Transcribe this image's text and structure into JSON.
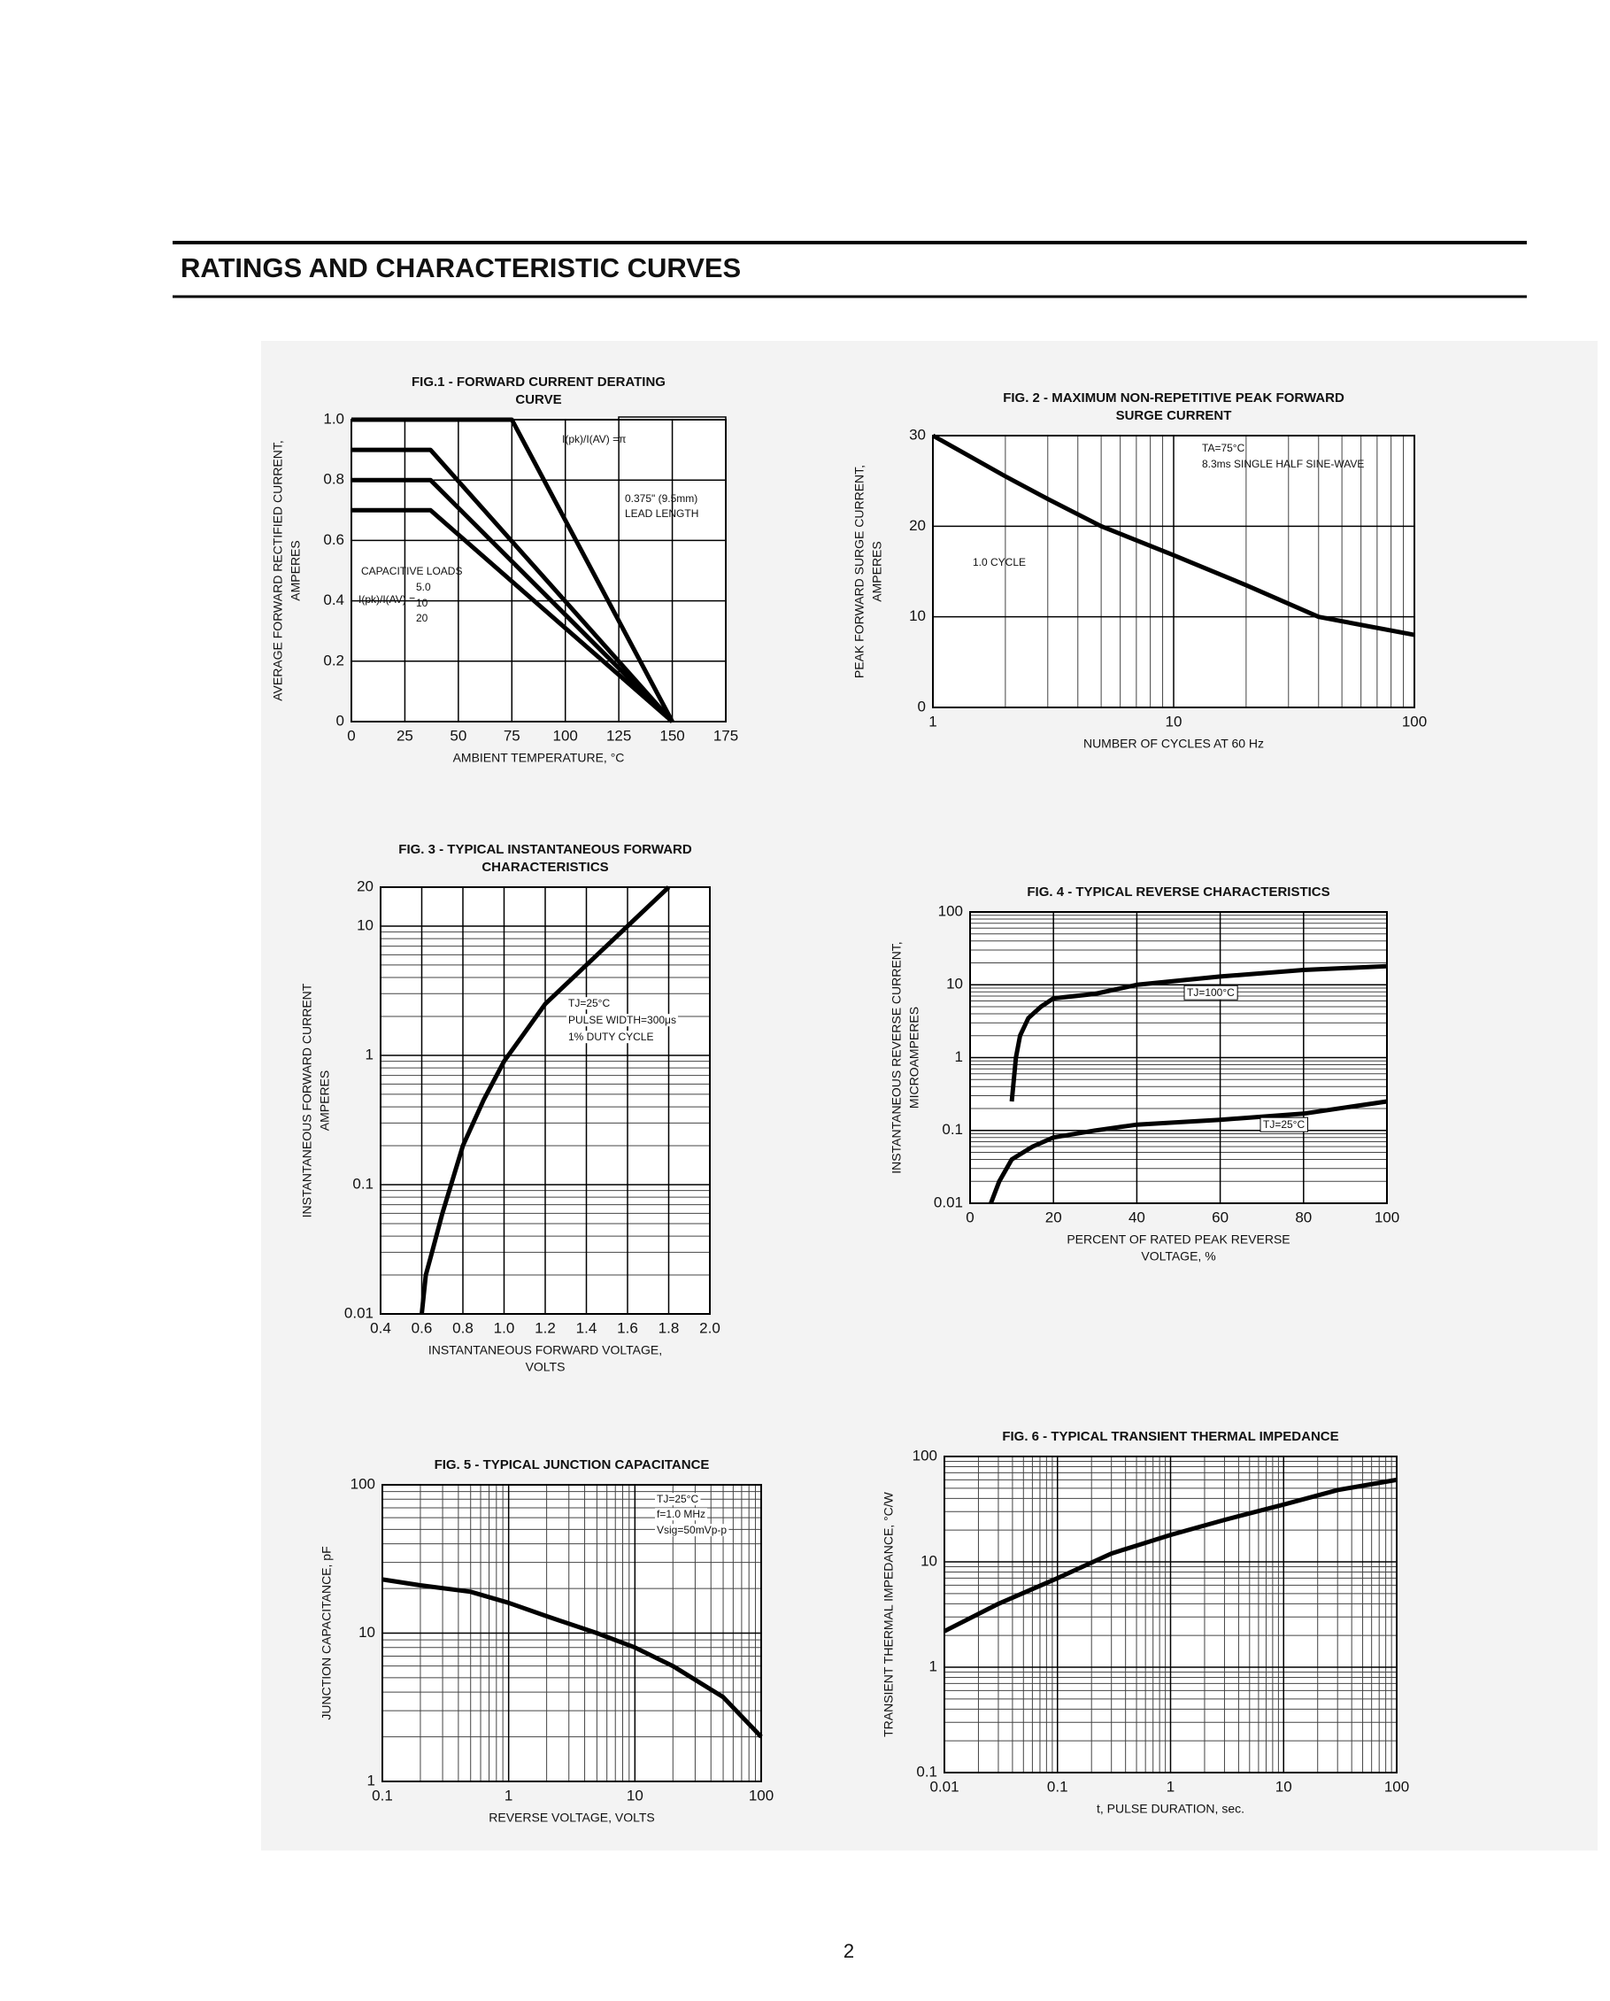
{
  "header": {
    "title": "RATINGS AND CHARACTERISTIC CURVES"
  },
  "footer": {
    "page_number": "2"
  },
  "chart_data": [
    {
      "type": "line",
      "title": [
        "FIG.1 - FORWARD CURRENT DERATING",
        "CURVE"
      ],
      "x_label": [
        "AMBIENT TEMPERATURE, °C"
      ],
      "y_label": [
        "AVERAGE FORWARD RECTIFIED CURRENT,",
        "AMPERES"
      ],
      "xlim": [
        0,
        175
      ],
      "ylim": [
        0,
        1
      ],
      "xticks": [
        0,
        25,
        50,
        75,
        100,
        125,
        150,
        175
      ],
      "yticks": [
        0,
        0.2,
        0.4,
        0.6,
        0.8,
        {
          "value": 1,
          "label": "1.0"
        }
      ],
      "grid": true,
      "annotations": [
        "I(pk)/I(AV) =π",
        "0.375\" (9.5mm)",
        "LEAD LENGTH",
        "CAPACITIVE LOADS",
        "I(pk)/I(AV) ="
      ],
      "series": [
        {
          "color": "#000000",
          "x": [
            0,
            75,
            150
          ],
          "values": [
            1,
            1,
            0
          ]
        },
        {
          "name": "5.0",
          "color": "#000000",
          "x": [
            0,
            37,
            150
          ],
          "values": [
            0.9,
            0.9,
            0
          ]
        },
        {
          "name": "10",
          "color": "#000000",
          "x": [
            0,
            37,
            150
          ],
          "values": [
            0.8,
            0.8,
            0
          ]
        },
        {
          "name": "20",
          "color": "#000000",
          "x": [
            0,
            37,
            150
          ],
          "values": [
            0.7,
            0.7,
            0
          ]
        }
      ]
    },
    {
      "type": "line",
      "title": [
        "FIG. 2 - MAXIMUM NON-REPETITIVE PEAK FORWARD",
        "SURGE CURRENT"
      ],
      "x_label": [
        "NUMBER OF CYCLES AT 60 Hz"
      ],
      "y_label": [
        "PEAK FORWARD SURGE CURRENT,",
        "AMPERES"
      ],
      "xlim": [
        1,
        100
      ],
      "ylim": [
        0,
        30
      ],
      "xticks": [
        1,
        10,
        100
      ],
      "yticks": [
        0,
        10,
        20,
        30
      ],
      "xscale": "log",
      "grid": true,
      "annotations": [
        "TA=75°C",
        "8.3ms SINGLE HALF SINE-WAVE",
        "1.0 CYCLE"
      ],
      "series": [
        {
          "color": "#000000",
          "x": [
            1,
            2,
            3,
            5,
            10,
            20,
            40,
            100
          ],
          "values": [
            30,
            25.5,
            23,
            20,
            16.8,
            13.5,
            10,
            8
          ]
        }
      ]
    },
    {
      "type": "line",
      "title": [
        "FIG. 3 - TYPICAL INSTANTANEOUS FORWARD",
        "CHARACTERISTICS"
      ],
      "x_label": [
        "INSTANTANEOUS FORWARD VOLTAGE,",
        "VOLTS"
      ],
      "y_label": [
        "INSTANTANEOUS FORWARD CURRENT",
        "AMPERES"
      ],
      "xlim": [
        0.4,
        2
      ],
      "ylim": [
        0.01,
        20
      ],
      "xticks": [
        0.4,
        0.6,
        0.8,
        {
          "value": 1,
          "label": "1.0"
        },
        1.2,
        1.4,
        1.6,
        1.8,
        {
          "value": 2,
          "label": "2.0"
        }
      ],
      "yticks": [
        0.01,
        0.1,
        1,
        10,
        20
      ],
      "yscale": "log",
      "grid": true,
      "annotations": [
        "TJ=25°C",
        "PULSE WIDTH=300μs",
        "1% DUTY CYCLE"
      ],
      "series": [
        {
          "color": "#000000",
          "x": [
            0.6,
            0.62,
            0.65,
            0.7,
            0.8,
            0.9,
            1.0,
            1.1,
            1.2,
            1.4,
            1.6,
            1.8
          ],
          "values": [
            0.01,
            0.02,
            0.03,
            0.06,
            0.2,
            0.45,
            0.9,
            1.5,
            2.5,
            5,
            10,
            20
          ]
        }
      ]
    },
    {
      "type": "line",
      "title": [
        "FIG. 4 - TYPICAL REVERSE CHARACTERISTICS"
      ],
      "x_label": [
        "PERCENT OF RATED PEAK REVERSE",
        "VOLTAGE, %"
      ],
      "y_label": [
        "INSTANTANEOUS REVERSE CURRENT,",
        "MICROAMPERES"
      ],
      "xlim": [
        0,
        100
      ],
      "ylim": [
        0.01,
        100
      ],
      "xticks": [
        0,
        20,
        40,
        60,
        80,
        100
      ],
      "yticks": [
        0.01,
        0.1,
        1,
        10,
        100
      ],
      "yscale": "log",
      "grid": true,
      "annotations": [],
      "series": [
        {
          "name": "TJ=100°C",
          "color": "#000000",
          "x": [
            10,
            11,
            12,
            14,
            17,
            20,
            30,
            40,
            60,
            80,
            100
          ],
          "values": [
            0.25,
            1,
            2,
            3.5,
            5,
            6.5,
            7.5,
            10,
            13,
            16,
            18
          ]
        },
        {
          "name": "TJ=25°C",
          "color": "#000000",
          "x": [
            5,
            7,
            10,
            15,
            20,
            30,
            40,
            60,
            80,
            100
          ],
          "values": [
            0.01,
            0.02,
            0.04,
            0.06,
            0.08,
            0.1,
            0.12,
            0.14,
            0.17,
            0.25
          ]
        }
      ]
    },
    {
      "type": "line",
      "title": [
        "FIG. 5 - TYPICAL JUNCTION CAPACITANCE"
      ],
      "x_label": [
        "REVERSE VOLTAGE, VOLTS"
      ],
      "y_label": [
        "JUNCTION CAPACITANCE, pF"
      ],
      "xlim": [
        0.1,
        100
      ],
      "ylim": [
        1,
        100
      ],
      "xticks": [
        0.1,
        1,
        10,
        100
      ],
      "yticks": [
        1,
        10,
        100
      ],
      "xscale": "log",
      "yscale": "log",
      "grid": true,
      "annotations": [
        "TJ=25°C",
        "f=1.0 MHz",
        "Vsig=50mVp-p"
      ],
      "series": [
        {
          "color": "#000000",
          "x": [
            0.1,
            0.2,
            0.5,
            1,
            2,
            5,
            10,
            20,
            50,
            100
          ],
          "values": [
            23,
            21,
            19,
            16,
            13,
            10,
            8,
            6,
            3.7,
            2
          ]
        }
      ]
    },
    {
      "type": "line",
      "title": [
        "FIG. 6 - TYPICAL TRANSIENT THERMAL IMPEDANCE"
      ],
      "x_label": [
        "t, PULSE DURATION, sec."
      ],
      "y_label": [
        "TRANSIENT THERMAL IMPEDANCE, °C/W"
      ],
      "xlim": [
        0.01,
        100
      ],
      "ylim": [
        0.1,
        100
      ],
      "xticks": [
        0.01,
        0.1,
        1,
        10,
        100
      ],
      "yticks": [
        0.1,
        1,
        10,
        100
      ],
      "xscale": "log",
      "yscale": "log",
      "grid": true,
      "annotations": [],
      "series": [
        {
          "color": "#000000",
          "x": [
            0.01,
            0.03,
            0.1,
            0.3,
            1,
            3,
            10,
            30,
            100
          ],
          "values": [
            2.2,
            4,
            7,
            12,
            18,
            25,
            35,
            48,
            60
          ]
        }
      ]
    }
  ]
}
